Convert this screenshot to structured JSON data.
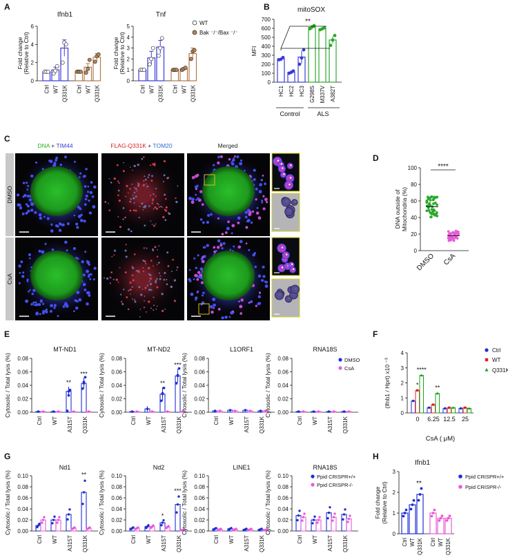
{
  "colors": {
    "blue": "#3a3ad6",
    "brown": "#b07a4a",
    "green": "#2aa82a",
    "red": "#e0211b",
    "magenta": "#e85bd8",
    "dark_blue": "#1f2fd0",
    "dark_green": "#17a317"
  },
  "panel_letters": [
    "A",
    "B",
    "C",
    "D",
    "E",
    "F",
    "G",
    "H"
  ],
  "chart_data": [
    {
      "id": "A1",
      "type": "bar",
      "title": "Ifnb1",
      "ylabel": "Fold change (Relative to Ctrl)",
      "ylim": [
        0,
        6
      ],
      "yticks": [
        0,
        2,
        4,
        6
      ],
      "categories": [
        "Ctrl",
        "WT",
        "Q331K",
        "Ctrl",
        "WT",
        "Q331K"
      ],
      "values": [
        1.0,
        1.2,
        3.6,
        1.0,
        1.5,
        2.6
      ],
      "errors": [
        0.05,
        0.3,
        0.9,
        0.05,
        0.4,
        0.4
      ],
      "points": [
        [
          1,
          1,
          1
        ],
        [
          0.8,
          1.1,
          1.6
        ],
        [
          2,
          4.2,
          4.0
        ],
        [
          1,
          1,
          1
        ],
        [
          0.9,
          1.3,
          2.3
        ],
        [
          2.1,
          2.7,
          2.9
        ]
      ]
    },
    {
      "id": "A2",
      "type": "bar",
      "title": "Tnf",
      "ylabel": "Fold change (Relative to Ctrl)",
      "ylim": [
        0,
        5
      ],
      "yticks": [
        0,
        1,
        2,
        3,
        4,
        5
      ],
      "categories": [
        "Ctrl",
        "WT",
        "Q331K",
        "Ctrl",
        "WT",
        "Q331K"
      ],
      "values": [
        1.0,
        2.1,
        3.1,
        1.0,
        1.1,
        2.5
      ],
      "errors": [
        0.05,
        0.6,
        0.6,
        0.05,
        0.1,
        0.5
      ],
      "points": [
        [
          1,
          1,
          1
        ],
        [
          1.5,
          2.0,
          3.0
        ],
        [
          2.3,
          3.0,
          3.9
        ],
        [
          1,
          1,
          1
        ],
        [
          1.0,
          1.1,
          1.2
        ],
        [
          2.0,
          2.7,
          2.8
        ]
      ],
      "legend": [
        "WT",
        "Bak ⁻/⁻/Bax ⁻/⁻"
      ]
    },
    {
      "id": "B",
      "type": "bar",
      "title": "mitoSOX",
      "ylabel": "MFI",
      "ylim": [
        0,
        700
      ],
      "yticks": [
        0,
        100,
        200,
        300,
        400,
        500,
        600,
        700
      ],
      "categories": [
        "HC1",
        "HC2",
        "HC3",
        "G298S",
        "M337V",
        "A382T"
      ],
      "values": [
        260,
        110,
        280,
        610,
        595,
        470
      ],
      "errors": [
        15,
        20,
        70,
        20,
        10,
        40
      ],
      "points": [
        [
          250,
          255,
          275
        ],
        [
          100,
          110,
          125
        ],
        [
          200,
          270,
          360
        ],
        [
          595,
          615,
          630
        ],
        [
          585,
          595,
          605
        ],
        [
          410,
          470,
          520
        ]
      ],
      "groups": [
        "Control",
        "ALS"
      ],
      "annotation": "**"
    },
    {
      "id": "D",
      "type": "scatter",
      "ylabel": "DNA outside of Mitochondria (%)",
      "ylim": [
        0,
        100
      ],
      "yticks": [
        0,
        20,
        40,
        60,
        80,
        100
      ],
      "categories": [
        "DMSO",
        "CsA"
      ],
      "means": [
        53,
        18
      ],
      "annotation": "****"
    },
    {
      "id": "E",
      "type": "bar",
      "ylabel": "Cytosolic / Total lysis (%)",
      "ylim": [
        0,
        0.08
      ],
      "yticks": [
        "0.00",
        "0.02",
        "0.04",
        "0.06",
        "0.08"
      ],
      "categories": [
        "Ctrl",
        "WT",
        "A315T",
        "Q331K"
      ],
      "legend": [
        "DMSO",
        "CsA"
      ],
      "subplots": [
        {
          "title": "MT-ND1",
          "dmso": [
            0.001,
            0.001,
            0.031,
            0.043
          ],
          "csa": [
            0.001,
            0.001,
            0.001,
            0.001
          ],
          "derr": [
            0.0005,
            0.0005,
            0.007,
            0.008
          ],
          "pts": [
            [
              0.002,
              0.025,
              0.033
            ],
            [
              0.035,
              0.045,
              0.052
            ]
          ],
          "stars": [
            "",
            "",
            "**",
            "***"
          ]
        },
        {
          "title": "MT-ND2",
          "dmso": [
            0.001,
            0.005,
            0.027,
            0.054
          ],
          "csa": [
            0.001,
            0.001,
            0.001,
            0.001
          ],
          "derr": [
            0.0005,
            0.004,
            0.01,
            0.01
          ],
          "pts": [
            [
              0.017,
              0.028,
              0.036
            ],
            [
              0.043,
              0.055,
              0.065
            ]
          ],
          "stars": [
            "",
            "",
            "**",
            "***"
          ]
        },
        {
          "title": "L1ORF1",
          "dmso": [
            0.002,
            0.003,
            0.003,
            0.002
          ],
          "csa": [
            0.002,
            0.002,
            0.002,
            0.002
          ],
          "derr": [
            0.001,
            0.001,
            0.001,
            0.001
          ],
          "pts": [],
          "stars": [
            "",
            "",
            "",
            ""
          ]
        },
        {
          "title": "RNA18S",
          "dmso": [
            0.001,
            0.001,
            0.001,
            0.001
          ],
          "csa": [
            0.001,
            0.001,
            0.001,
            0.001
          ],
          "derr": [
            0.0005,
            0.0005,
            0.0005,
            0.0005
          ],
          "pts": [],
          "stars": [
            "",
            "",
            "",
            ""
          ],
          "show_legend": true
        }
      ]
    },
    {
      "id": "F",
      "type": "bar",
      "ylabel": "(Ifnb1 / Hprt) x10 ⁻³",
      "xlabel": "CsA ( μM)",
      "ylim": [
        0,
        4
      ],
      "yticks": [
        0,
        1,
        2,
        3,
        4
      ],
      "categories": [
        "0",
        "6.25",
        "12.5",
        "25"
      ],
      "legend": [
        "Ctrl",
        "WT",
        "Q331K"
      ],
      "values": [
        [
          0.8,
          0.35,
          0.3,
          0.3
        ],
        [
          1.5,
          0.55,
          0.35,
          0.35
        ],
        [
          2.5,
          1.3,
          0.35,
          0.3
        ]
      ],
      "stars": [
        [
          "",
          "",
          "",
          ""
        ],
        [
          "*",
          "",
          "",
          ""
        ],
        [
          "****",
          "**",
          "",
          ""
        ]
      ]
    },
    {
      "id": "G",
      "type": "bar",
      "ylabel": "Cytosolic / Total lysis (%)",
      "ylim": [
        0,
        0.1
      ],
      "yticks": [
        "0.00",
        "0.02",
        "0.04",
        "0.06",
        "0.08",
        "0.10"
      ],
      "categories": [
        "Ctrl",
        "WT",
        "A315T",
        "Q331K"
      ],
      "legend": [
        "Ppid CRISPR+/+",
        "Ppid CRISPR-/-"
      ],
      "subplots": [
        {
          "title": "Nd1",
          "a": [
            0.01,
            0.02,
            0.03,
            0.07
          ],
          "b": [
            0.02,
            0.02,
            0.005,
            0.005
          ],
          "stars": [
            "",
            "",
            "",
            "**"
          ]
        },
        {
          "title": "Nd2",
          "a": [
            0.005,
            0.008,
            0.015,
            0.048
          ],
          "b": [
            0.005,
            0.008,
            0.007,
            0.002
          ],
          "stars": [
            "",
            "",
            "*",
            "***"
          ]
        },
        {
          "title": "LINE1",
          "a": [
            0.004,
            0.004,
            0.003,
            0.003
          ],
          "b": [
            0.003,
            0.003,
            0.003,
            0.002
          ],
          "stars": [
            "",
            "",
            "",
            ""
          ]
        },
        {
          "title": "RNA18S",
          "a": [
            0.028,
            0.02,
            0.033,
            0.03
          ],
          "b": [
            0.025,
            0.02,
            0.025,
            0.022
          ],
          "stars": [
            "",
            "",
            "",
            ""
          ],
          "show_legend": true
        }
      ]
    },
    {
      "id": "H",
      "type": "bar",
      "title": "Ifnb1",
      "ylabel": "Fold change (Relative to Ctrl)",
      "ylim": [
        0,
        3
      ],
      "yticks": [
        0,
        1,
        2,
        3
      ],
      "categories": [
        "Ctrl",
        "WT",
        "Q331K",
        "Ctrl",
        "WT",
        "Q331K"
      ],
      "values": [
        1.0,
        1.4,
        1.9,
        1.0,
        0.75,
        0.75
      ],
      "annotation": "**",
      "legend": [
        "Ppid CRISPR+/+",
        "Ppid CRISPR-/-"
      ]
    }
  ],
  "panel_c": {
    "columns": [
      {
        "parts": [
          {
            "t": "DNA",
            "c": "#22b322"
          },
          {
            "t": " + ",
            "c": "#222"
          },
          {
            "t": "TIM44",
            "c": "#3a3ad6"
          }
        ]
      },
      {
        "parts": [
          {
            "t": "FLAG-Q331K",
            "c": "#d62020"
          },
          {
            "t": " + ",
            "c": "#222"
          },
          {
            "t": "TOM20",
            "c": "#2a6ad6"
          }
        ]
      },
      {
        "parts": [
          {
            "t": "Merged",
            "c": "#222"
          }
        ]
      }
    ],
    "rows": [
      "DMSO",
      "CsA"
    ]
  }
}
